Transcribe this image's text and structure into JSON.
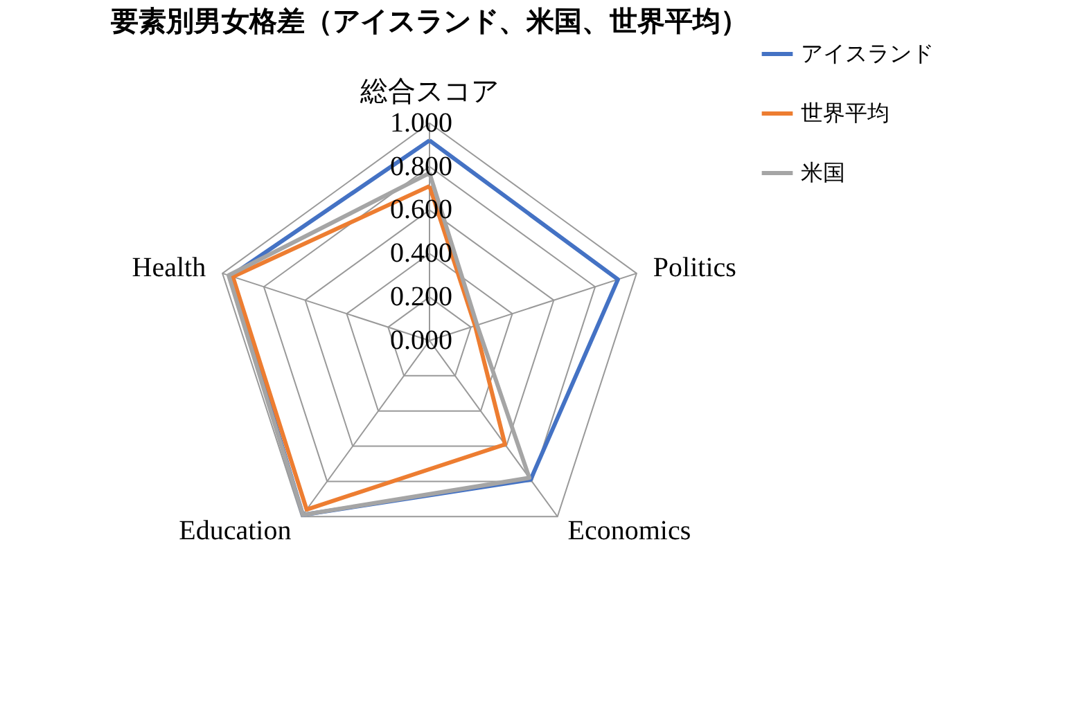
{
  "chart_data": {
    "type": "radar",
    "title": "要素別男女格差（アイスランド、米国、世界平均）",
    "categories": [
      "総合スコア",
      "Politics",
      "Economics",
      "Education",
      "Health"
    ],
    "series": [
      {
        "name": "アイスランド",
        "color": "#4472c4",
        "values": [
          0.92,
          0.91,
          0.79,
          0.99,
          0.96
        ]
      },
      {
        "name": "世界平均",
        "color": "#ed7d31",
        "values": [
          0.71,
          0.22,
          0.59,
          0.96,
          0.95
        ]
      },
      {
        "name": "米国",
        "color": "#a5a5a5",
        "values": [
          0.77,
          0.23,
          0.78,
          0.99,
          0.97
        ]
      }
    ],
    "ylim": [
      0,
      1
    ],
    "yticks": [
      {
        "value": 0,
        "label": "0.000"
      },
      {
        "value": 0.2,
        "label": "0.200"
      },
      {
        "value": 0.4,
        "label": "0.400"
      },
      {
        "value": 0.6,
        "label": "0.600"
      },
      {
        "value": 0.8,
        "label": "0.800"
      },
      {
        "value": 1,
        "label": "1.000"
      }
    ],
    "grid": true,
    "legend": "right"
  }
}
